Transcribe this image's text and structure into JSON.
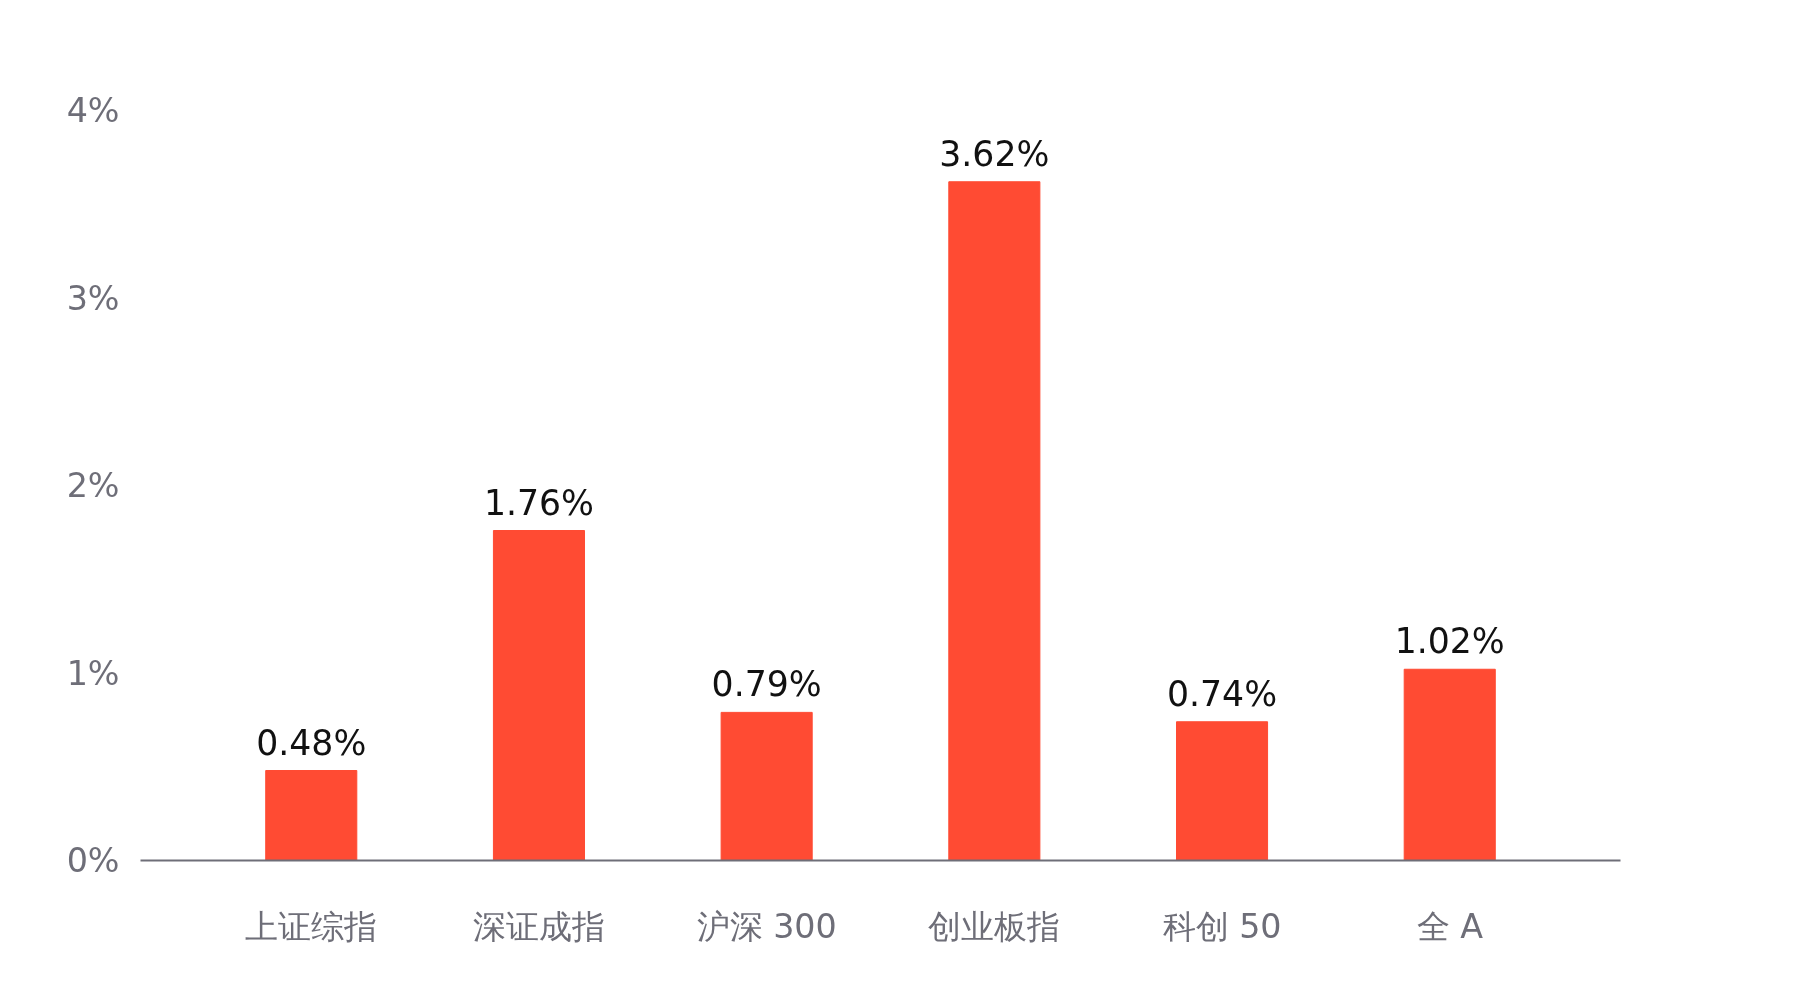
{
  "chart_data": {
    "type": "bar",
    "categories": [
      "上证综指",
      "深证成指",
      "沪深 300",
      "创业板指",
      "科创 50",
      "全 A"
    ],
    "values": [
      0.48,
      1.76,
      0.79,
      3.62,
      0.74,
      1.02
    ],
    "value_labels": [
      "0.48%",
      "1.76%",
      "0.79%",
      "3.62%",
      "0.74%",
      "1.02%"
    ],
    "color": "#ff4b33",
    "ylim": [
      0,
      4
    ],
    "yticks": [
      {
        "value": 0,
        "label": "0%"
      },
      {
        "value": 1,
        "label": "1%"
      },
      {
        "value": 2,
        "label": "2%"
      },
      {
        "value": 3,
        "label": "3%"
      },
      {
        "value": 4,
        "label": "4%"
      }
    ],
    "grid": false
  }
}
